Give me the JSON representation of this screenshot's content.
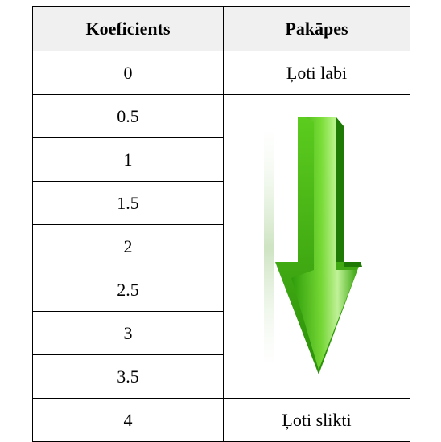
{
  "table": {
    "headers": [
      "Koeficients",
      "Pakāpes"
    ],
    "rows": [
      [
        "0",
        "Ļoti labi"
      ],
      [
        "0.5"
      ],
      [
        "1"
      ],
      [
        "1.5"
      ],
      [
        "2"
      ],
      [
        "2.5"
      ],
      [
        "3"
      ],
      [
        "3.5"
      ],
      [
        "4",
        "Ļoti slikti"
      ]
    ]
  }
}
